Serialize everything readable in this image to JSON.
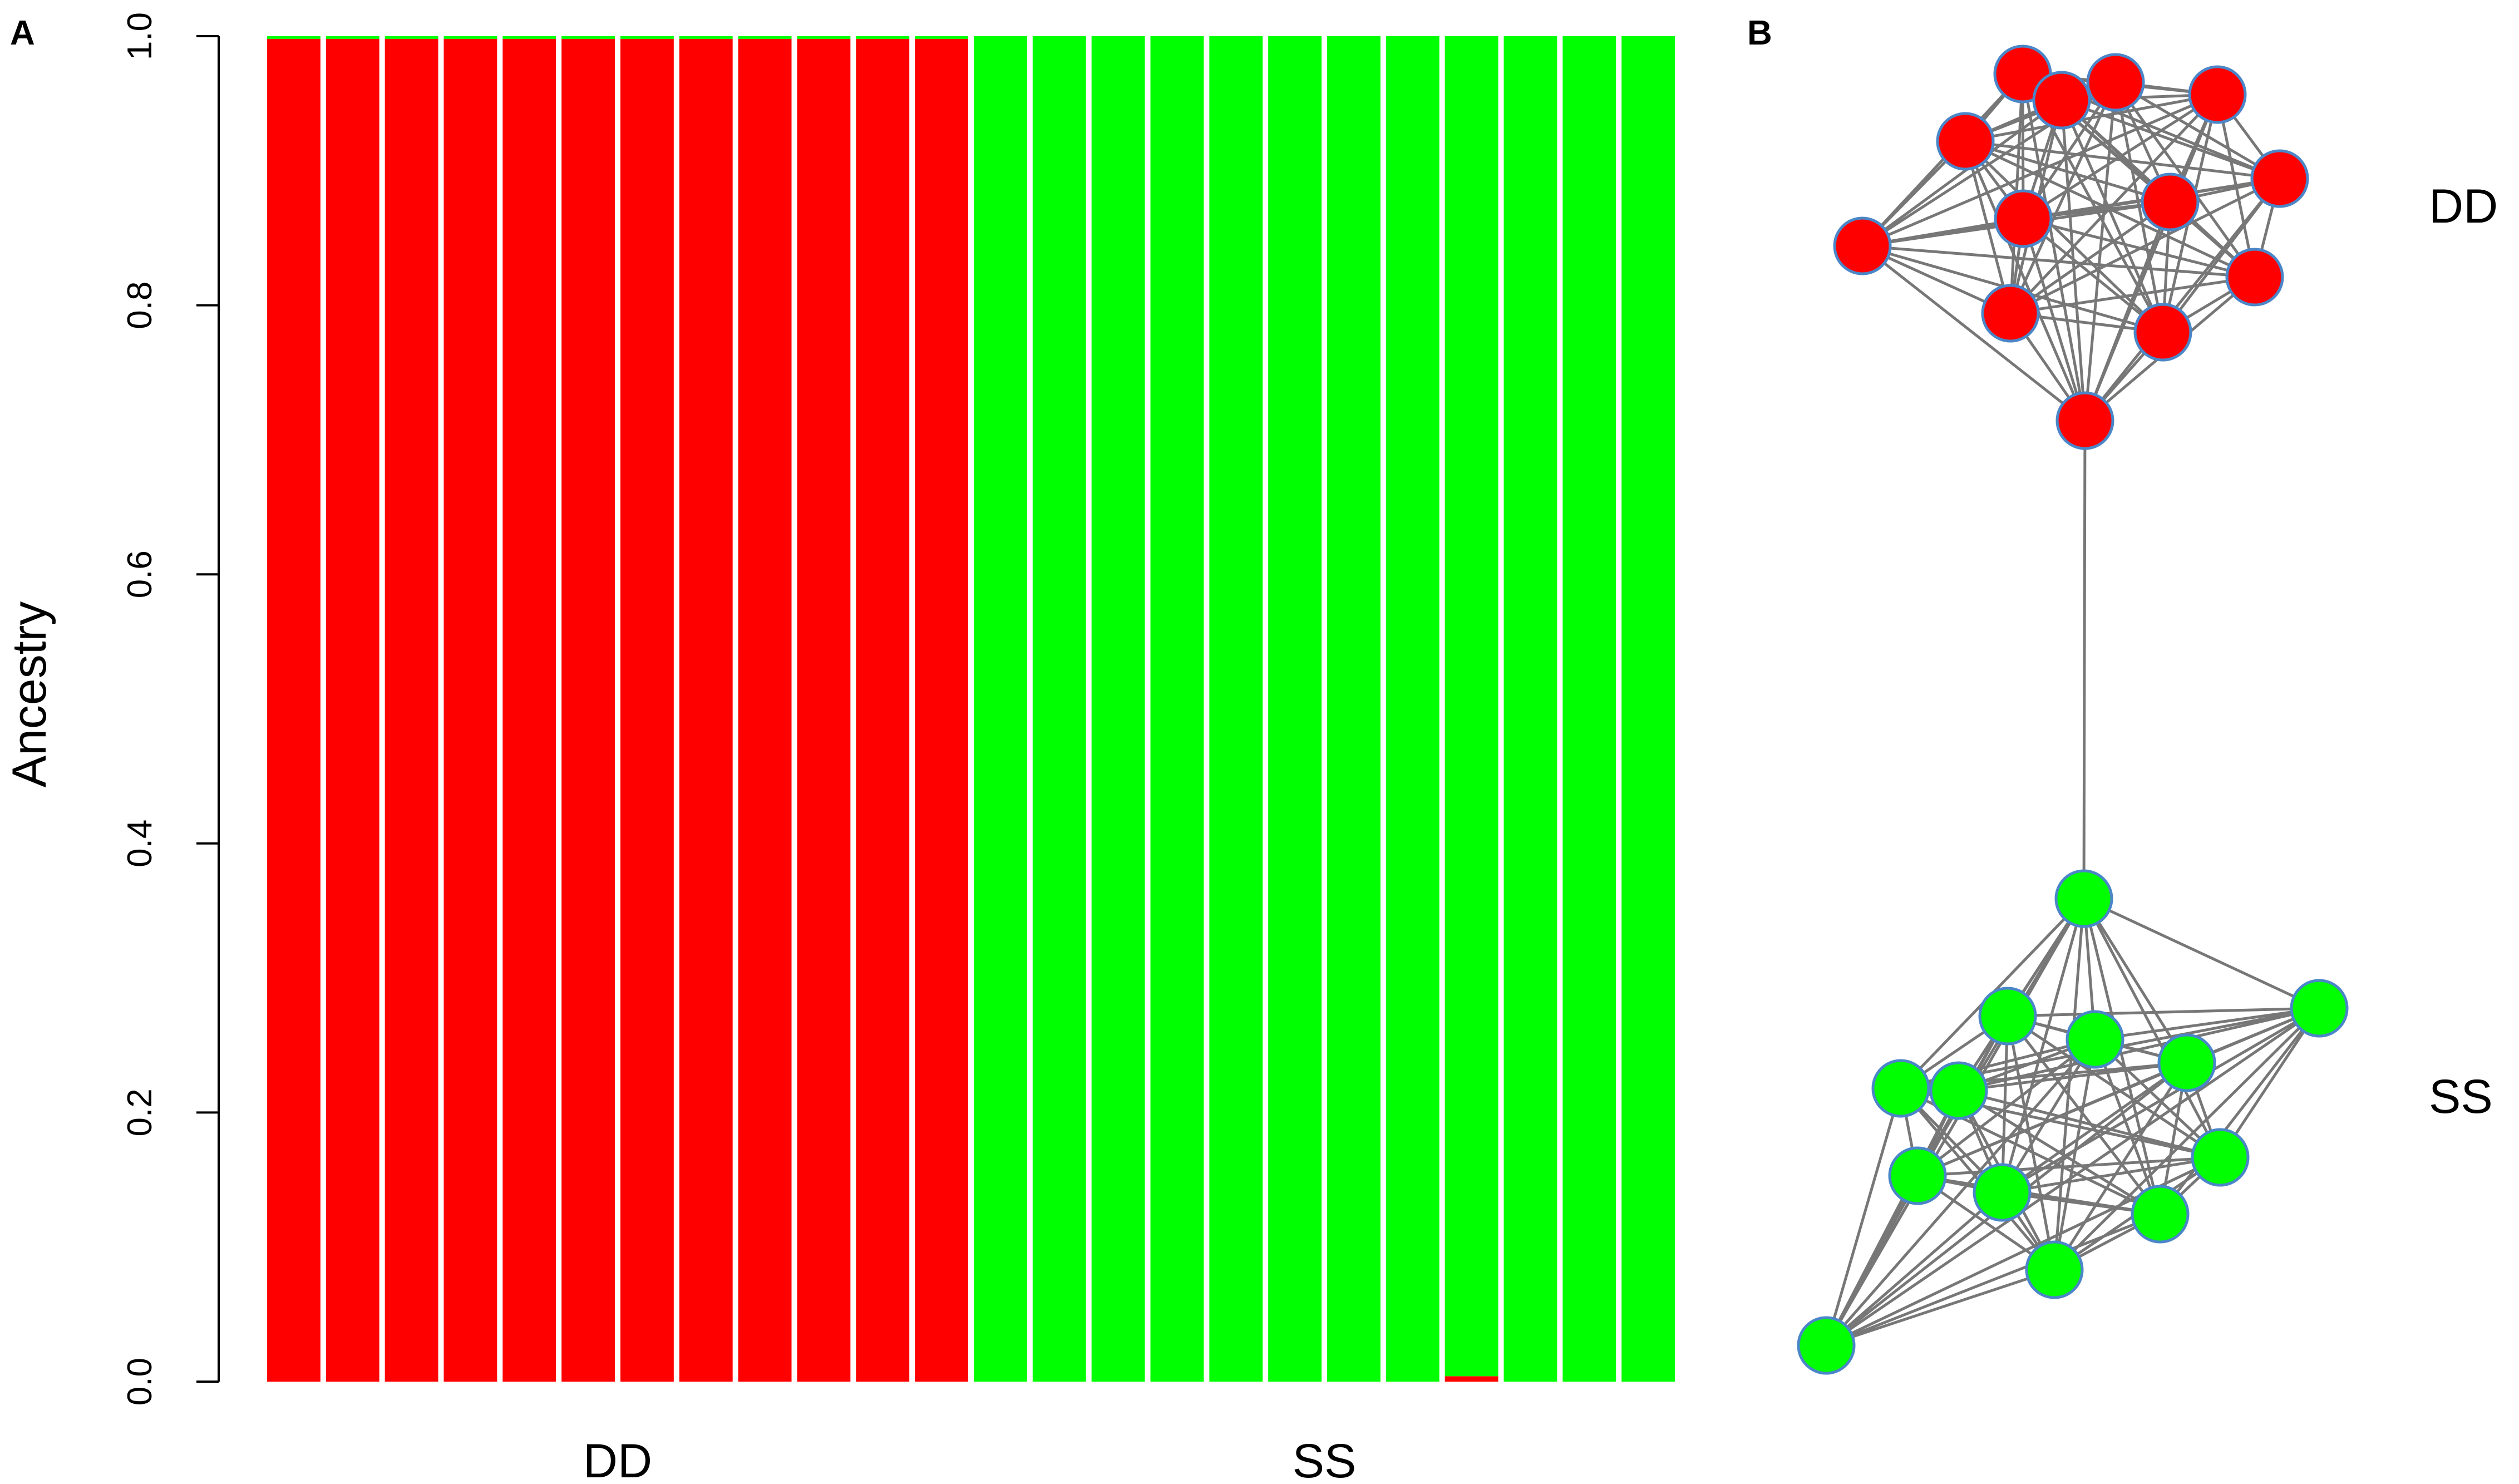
{
  "panels": [
    {
      "letter": "A"
    },
    {
      "letter": "B"
    }
  ],
  "chart_data": [
    {
      "type": "bar",
      "subtype": "stacked",
      "title": "",
      "xlabel": "",
      "ylabel": "Ancestry",
      "ylim": [
        0,
        1
      ],
      "yticks": [
        "0.0",
        "0.2",
        "0.4",
        "0.6",
        "0.8",
        "1.0"
      ],
      "group_labels": [
        {
          "label": "DD",
          "first_bar": 0,
          "last_bar": 11
        },
        {
          "label": "SS",
          "first_bar": 12,
          "last_bar": 23
        }
      ],
      "bar_count": 24,
      "grid": false,
      "colors": {
        "cluster_1": "#ff0000",
        "cluster_2": "#00ff00",
        "bar_border": "#ffffff"
      },
      "series": [
        {
          "color": "#ff0000",
          "values": [
            0.998,
            0.998,
            0.998,
            0.998,
            0.998,
            0.998,
            0.998,
            0.998,
            0.998,
            0.998,
            0.998,
            0.998,
            0,
            0,
            0,
            0,
            0,
            0,
            0,
            0,
            0.004,
            0,
            0,
            0
          ]
        },
        {
          "color": "#00ff00",
          "values": [
            0.002,
            0.002,
            0.002,
            0.002,
            0.002,
            0.002,
            0.002,
            0.002,
            0.002,
            0.002,
            0.002,
            0.002,
            1,
            1,
            1,
            1,
            1,
            1,
            1,
            1,
            0.996,
            1,
            1,
            1
          ]
        }
      ]
    },
    {
      "type": "network",
      "colors": {
        "edge": "#777777",
        "node_stroke": "#4a86c8"
      },
      "groups": [
        {
          "label": "DD",
          "color": "#ff0000",
          "node_count": 13
        },
        {
          "label": "SS",
          "color": "#00ff00",
          "node_count": 13
        }
      ],
      "bridge": "one edge links the two groups"
    }
  ]
}
